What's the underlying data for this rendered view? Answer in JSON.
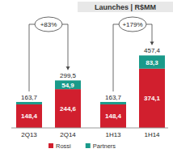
{
  "chart_data": {
    "type": "bar",
    "title": "Launches | R$MM",
    "categories": [
      "2Q13",
      "2Q14",
      "1H13",
      "1H14"
    ],
    "stacked": true,
    "data_labels": true,
    "tick_labels": "x",
    "grid": false,
    "legend": "bottom",
    "ylim": [
      0,
      470
    ],
    "series": [
      {
        "name": "Rossi",
        "color": "#d11f2e",
        "values": [
          148.4,
          244.6,
          148.4,
          374.1
        ],
        "value_labels": [
          "148,4",
          "244,6",
          "148,4",
          "374,1"
        ]
      },
      {
        "name": "Partners",
        "color": "#1a9a8a",
        "values": [
          15.3,
          54.9,
          15.3,
          83.3
        ],
        "value_labels": [
          null,
          "54,9",
          null,
          "83,3"
        ]
      }
    ],
    "totals": [
      163.7,
      299.5,
      163.7,
      457.4
    ],
    "total_labels": [
      "163,7",
      "299,5",
      "163,7",
      "457,4"
    ],
    "annotations": [
      "+83%",
      "+179%"
    ]
  }
}
